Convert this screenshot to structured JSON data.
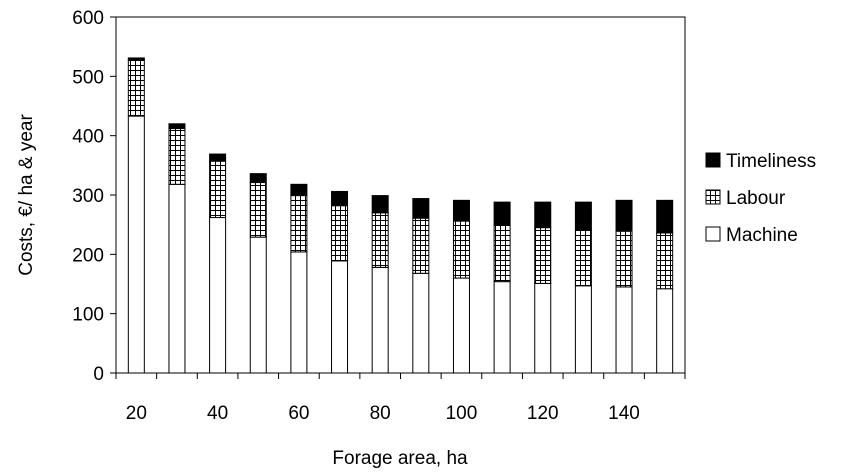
{
  "chart_data": {
    "type": "bar",
    "stacked": true,
    "title": "",
    "xlabel": "Forage area, ha",
    "ylabel": "Costs, €/ ha & year",
    "categories": [
      20,
      30,
      40,
      50,
      60,
      70,
      80,
      90,
      100,
      110,
      120,
      130,
      140,
      150
    ],
    "x_tick_labels": [
      "20",
      "40",
      "60",
      "80",
      "100",
      "120",
      "140"
    ],
    "y_ticks": [
      0,
      100,
      200,
      300,
      400,
      500,
      600
    ],
    "ylim": [
      0,
      600
    ],
    "grid": false,
    "legend_position": "right",
    "series": [
      {
        "name": "Machine",
        "pattern": "white",
        "color": "#ffffff",
        "values": [
          433,
          318,
          262,
          229,
          204,
          189,
          178,
          168,
          160,
          154,
          151,
          147,
          145,
          142
        ]
      },
      {
        "name": "Labour",
        "pattern": "grid",
        "color": "#ffffff",
        "values": [
          95,
          94,
          95,
          92,
          95,
          93,
          92,
          93,
          96,
          95,
          94,
          94,
          94,
          94
        ]
      },
      {
        "name": "Timeliness",
        "pattern": "solid",
        "color": "#000000",
        "values": [
          3,
          8,
          12,
          15,
          19,
          24,
          29,
          33,
          35,
          39,
          43,
          47,
          52,
          55
        ]
      }
    ],
    "legend_order": [
      "Timeliness",
      "Labour",
      "Machine"
    ]
  }
}
